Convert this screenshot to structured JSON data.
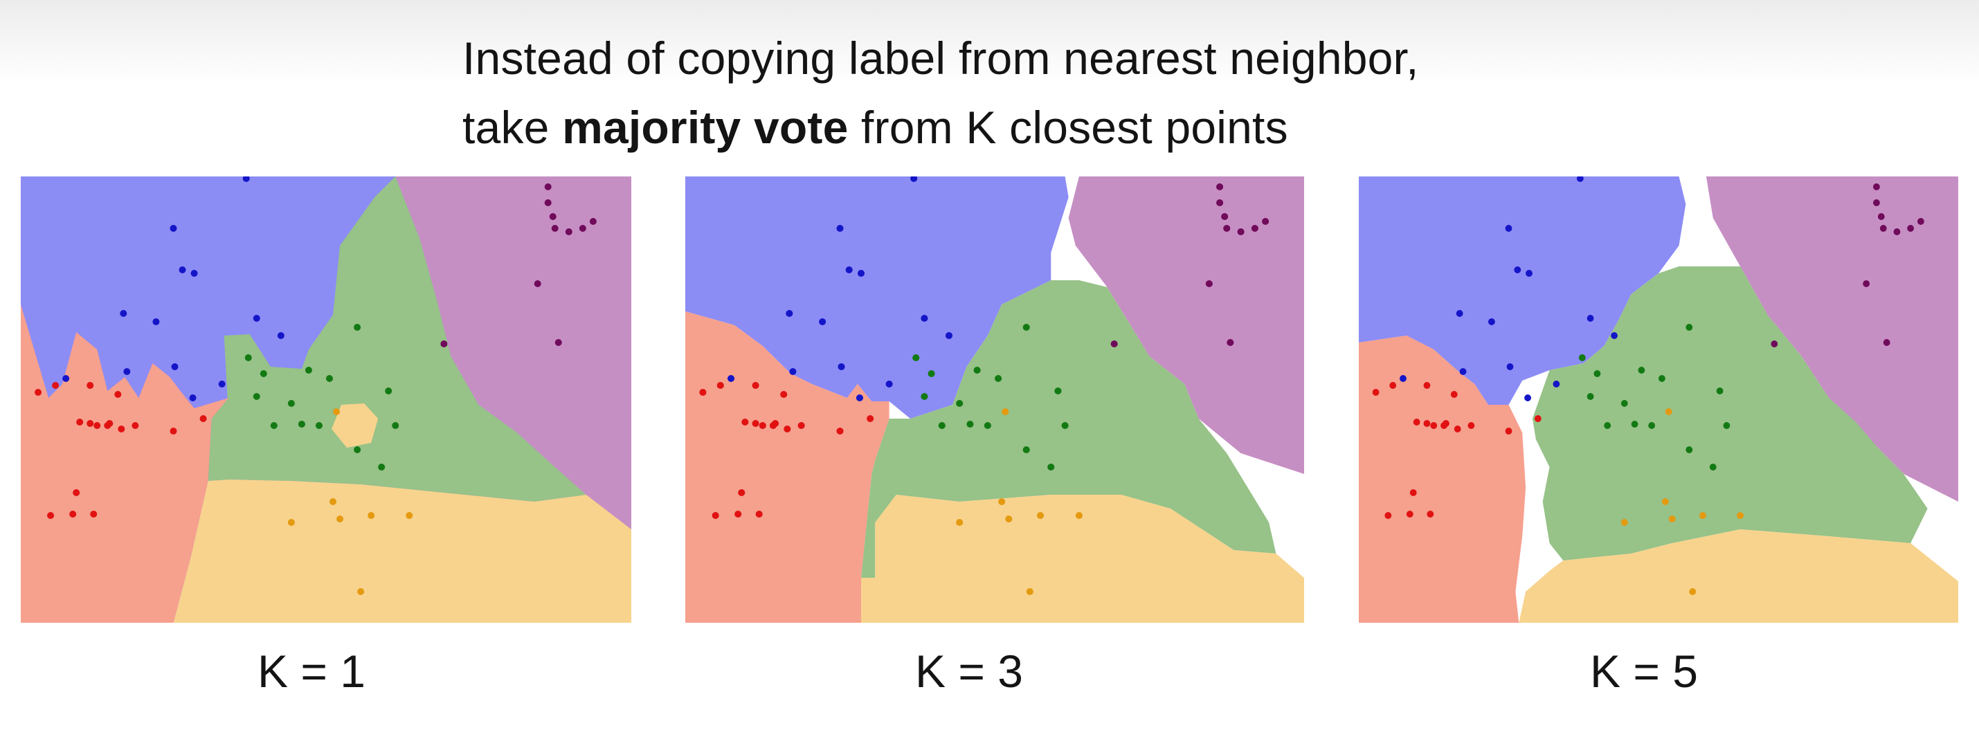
{
  "slide": {
    "line1": "Instead of copying label from nearest neighbor,",
    "line2_prefix": "take ",
    "line2_bold": "majority vote",
    "line2_suffix": " from K closest points"
  },
  "colors": {
    "blue_region": "#8c8cf5",
    "purple_region": "#c68fc4",
    "green_region": "#97c288",
    "orange_region": "#f8d38d",
    "red_region": "#f6a08e",
    "undecided": "#ffffff",
    "blue_point": "#1515c8",
    "purple_point": "#700a5a",
    "green_point": "#137a13",
    "orange_point": "#e49a10",
    "red_point": "#e01212"
  },
  "panels": [
    {
      "label": "K = 1"
    },
    {
      "label": "K = 3"
    },
    {
      "label": "K = 5"
    }
  ]
}
